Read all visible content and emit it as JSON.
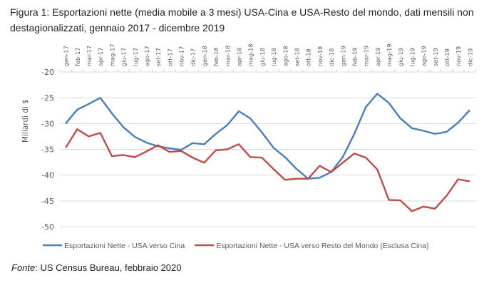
{
  "title": "Figura 1: Esportazioni nette (media mobile a 3 mesi) USA-Cina e USA-Resto del mondo, dati mensili non destagionalizzati, gennaio 2017 - dicembre 2019",
  "source": {
    "label": "Fonte",
    "text": ": US Census Bureau, febbraio 2020"
  },
  "chart_data": {
    "type": "line",
    "title": "Figura 1: Esportazioni nette (media mobile a 3 mesi) USA-Cina e USA-Resto del mondo, dati mensili non destagionalizzati, gennaio 2017 - dicembre 2019",
    "xlabel": "",
    "ylabel": "Miliardi di $",
    "ylim": [
      -50,
      -20
    ],
    "yticks": [
      -20,
      -25,
      -30,
      -35,
      -40,
      -45,
      -50
    ],
    "grid": true,
    "x_axis_position": "top",
    "legend_position": "bottom",
    "categories": [
      "gen-17",
      "feb-17",
      "mar-17",
      "apr-17",
      "mag-17",
      "giu-17",
      "lug-17",
      "ago-17",
      "set-17",
      "ott-17",
      "nov-17",
      "dic-17",
      "gen-18",
      "feb-18",
      "mar-18",
      "apr-18",
      "mag-18",
      "giu-18",
      "lug-18",
      "ago-18",
      "set-18",
      "ott-18",
      "nov-18",
      "dic-18",
      "gen-19",
      "feb-19",
      "mar-19",
      "apr-19",
      "mag-19",
      "giu-19",
      "lug-19",
      "ago-19",
      "set-19",
      "ott-19",
      "nov-19",
      "dic-19"
    ],
    "series": [
      {
        "name": "Esportazioni Nette - USA verso Cina",
        "color": "#4a7ebb",
        "values": [
          -30.0,
          -27.3,
          -26.2,
          -25.0,
          -28.0,
          -30.7,
          -32.6,
          -33.7,
          -34.4,
          -34.8,
          -35.1,
          -33.8,
          -34.0,
          -32.0,
          -30.3,
          -27.6,
          -29.0,
          -31.7,
          -34.7,
          -36.5,
          -38.8,
          -40.7,
          -40.5,
          -39.4,
          -36.5,
          -32.0,
          -26.8,
          -24.2,
          -26.0,
          -29.0,
          -30.9,
          -31.4,
          -32.0,
          -31.6,
          -29.8,
          -27.4
        ]
      },
      {
        "name": "Esportazioni Nette - USA verso Resto del Mondo (Esclusa Cina)",
        "color": "#be4b48",
        "values": [
          -34.7,
          -31.1,
          -32.5,
          -31.8,
          -36.3,
          -36.1,
          -36.5,
          -35.4,
          -34.2,
          -35.5,
          -35.3,
          -36.6,
          -37.6,
          -35.2,
          -35.0,
          -34.0,
          -36.5,
          -36.6,
          -38.8,
          -40.9,
          -40.7,
          -40.7,
          -38.2,
          -39.4,
          -37.6,
          -35.8,
          -36.6,
          -38.9,
          -44.8,
          -44.9,
          -47.0,
          -46.1,
          -46.5,
          -44.0,
          -40.8,
          -41.2
        ]
      }
    ]
  }
}
